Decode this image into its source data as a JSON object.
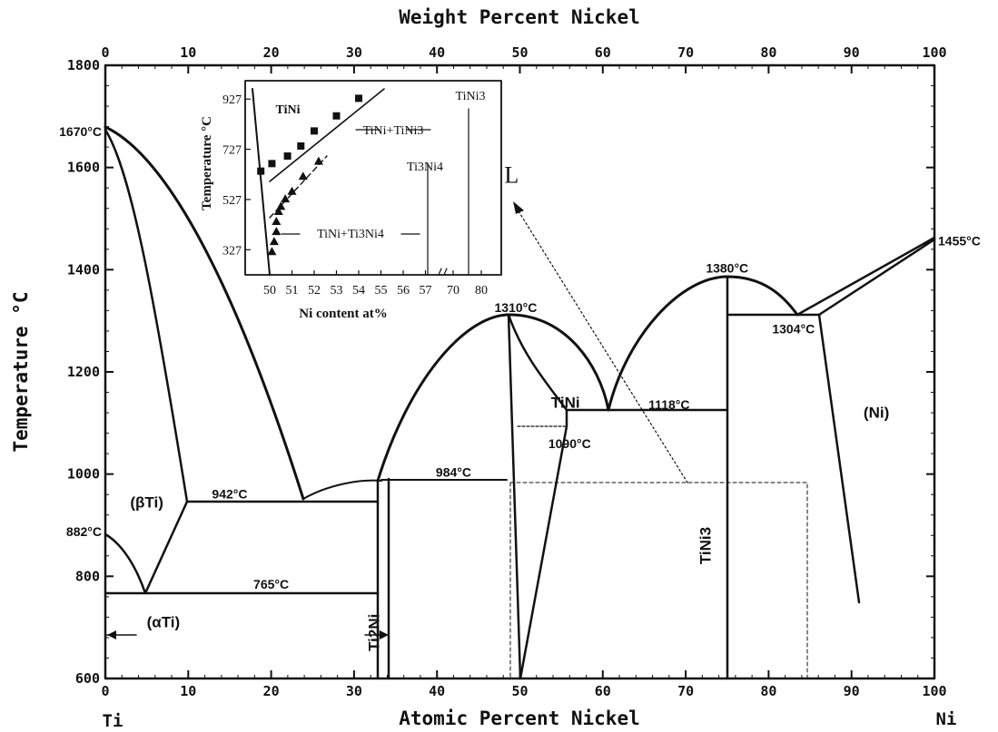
{
  "chart_data": [
    {
      "type": "phase-diagram",
      "title_top": "Weight Percent Nickel",
      "xlabel": "Atomic Percent Nickel",
      "ylabel": "Temperature °C",
      "xlim": [
        0,
        100
      ],
      "ylim": [
        600,
        1800
      ],
      "x_ticks": [
        "0",
        "10",
        "20",
        "30",
        "40",
        "50",
        "60",
        "70",
        "80",
        "90",
        "100"
      ],
      "x_top_ticks": [
        "0",
        "10",
        "20",
        "30",
        "40",
        "50",
        "60",
        "70",
        "80",
        "90",
        "100"
      ],
      "y_ticks": [
        "600",
        "800",
        "1000",
        "1200",
        "1400",
        "1600",
        "1800"
      ],
      "end_labels": {
        "left": "Ti",
        "right": "Ni"
      },
      "temperature_annotations": [
        {
          "text": "1670°C",
          "x": 0,
          "y": 1670
        },
        {
          "text": "882°C",
          "x": 0,
          "y": 882
        },
        {
          "text": "1455°C",
          "x": 100,
          "y": 1455
        },
        {
          "text": "942°C",
          "x": 15,
          "y": 942
        },
        {
          "text": "765°C",
          "x": 20,
          "y": 765
        },
        {
          "text": "984°C",
          "x": 42,
          "y": 984
        },
        {
          "text": "1310°C",
          "x": 49.5,
          "y": 1310
        },
        {
          "text": "1090°C",
          "x": 56,
          "y": 1090
        },
        {
          "text": "1118°C",
          "x": 68,
          "y": 1118
        },
        {
          "text": "1380°C",
          "x": 75,
          "y": 1380
        },
        {
          "text": "1304°C",
          "x": 83,
          "y": 1304
        }
      ],
      "phase_labels": [
        {
          "text": "(βTi)",
          "x": 5,
          "y": 935
        },
        {
          "text": "(αTi)",
          "x": 7,
          "y": 700
        },
        {
          "text": "Ti2Ni",
          "x": 33,
          "y": 690
        },
        {
          "text": "TiNi",
          "x": 55.5,
          "y": 1130
        },
        {
          "text": "TiNi3",
          "x": 73,
          "y": 860
        },
        {
          "text": "(Ni)",
          "x": 93,
          "y": 1110
        },
        {
          "text": "L",
          "x": 49,
          "y": 1570
        }
      ],
      "key_temperatures": {
        "Ti_melting": 1670,
        "Ti_allotropic": 882,
        "Ni_melting": 1455,
        "eutectic_Ti_rich": 942,
        "eutectoid": 765,
        "peritectic_Ti2Ni": 984,
        "TiNi_melting": 1310,
        "TiNi_eutectoid": 1090,
        "eutectic_TiNi_TiNi3": 1118,
        "TiNi3_melting": 1380,
        "eutectic_TiNi3_Ni": 1304
      }
    },
    {
      "type": "scatter",
      "name": "inset",
      "xlabel": "Ni content at%",
      "ylabel": "Temperature °C",
      "x_ticks": [
        "50",
        "51",
        "52",
        "53",
        "54",
        "55",
        "56",
        "57",
        "70",
        "80"
      ],
      "y_ticks": [
        "327",
        "527",
        "727",
        "927"
      ],
      "ylim": [
        227,
        1000
      ],
      "regions": [
        "TiNi",
        "TiNi+TiNi3",
        "Ti3Ni4",
        "TiNi+Ti3Ni4",
        "TiNi3"
      ],
      "series": [
        {
          "marker": "square",
          "x": [
            49.6,
            50.1,
            50.8,
            51.4,
            52.0,
            53.0,
            54.0
          ],
          "y": [
            640,
            670,
            700,
            740,
            800,
            860,
            930
          ]
        },
        {
          "marker": "triangle",
          "x": [
            50.1,
            50.2,
            50.3,
            50.3,
            50.4,
            50.5,
            50.7,
            51.0,
            51.5,
            52.2
          ],
          "y": [
            320,
            360,
            400,
            440,
            480,
            500,
            530,
            560,
            620,
            680
          ]
        }
      ]
    }
  ]
}
